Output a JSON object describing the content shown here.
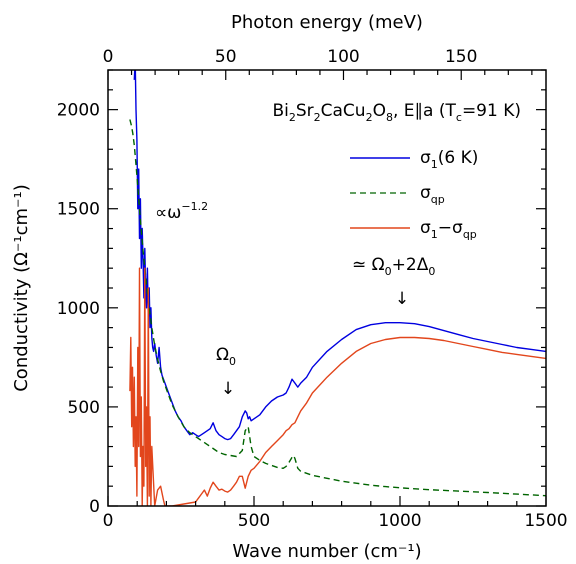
{
  "chart_data": {
    "type": "line",
    "title": "",
    "xlabel": "Wave number (cm⁻¹)",
    "ylabel": "Conductivity (Ω⁻¹cm⁻¹)",
    "x2label": "Photon energy (meV)",
    "xlim": [
      0,
      1500
    ],
    "ylim": [
      0,
      2200
    ],
    "x2lim": [
      0,
      186
    ],
    "x_ticks": [
      0,
      500,
      1000,
      1500
    ],
    "y_ticks": [
      0,
      500,
      1000,
      1500,
      2000
    ],
    "x2_ticks": [
      0,
      50,
      100,
      150
    ],
    "grid": false,
    "legend_position": "top-right",
    "sample_label": {
      "parts": [
        "Bi",
        "2",
        "Sr",
        "2",
        "CaCu",
        "2",
        "O",
        "8",
        ", E",
        "∥",
        "a (T",
        "c",
        "=91 K)"
      ]
    },
    "legend": [
      {
        "main": "σ",
        "sub": "1",
        "tail": "(6 K)",
        "color": "#0000e0",
        "dash": "solid"
      },
      {
        "main": "σ",
        "sub": "qp",
        "tail": "",
        "color": "#006400",
        "dash": "dashed"
      },
      {
        "main": "σ",
        "sub": "1",
        "tail": "−σ",
        "sub2": "qp",
        "color": "#e2461c",
        "dash": "solid"
      }
    ],
    "annotations": {
      "powerlaw": {
        "prefix": "∝ω",
        "sup": "−1.2"
      },
      "omega0": {
        "main": "Ω",
        "sub": "0",
        "arrow": "↓"
      },
      "peak": {
        "prefix": "≃ Ω",
        "sub1": "0",
        "mid": "+2Δ",
        "sub2": "0",
        "arrow": "↓"
      }
    },
    "series": [
      {
        "name": "σ₁(6 K)",
        "color": "#0000e0",
        "dash": "solid",
        "x": [
          90,
          93,
          96,
          99,
          102,
          105,
          108,
          111,
          114,
          117,
          120,
          123,
          126,
          129,
          132,
          135,
          138,
          141,
          144,
          147,
          150,
          153,
          156,
          160,
          165,
          170,
          175,
          180,
          185,
          190,
          200,
          210,
          220,
          230,
          240,
          250,
          260,
          270,
          280,
          290,
          300,
          310,
          320,
          330,
          340,
          350,
          360,
          370,
          380,
          390,
          400,
          410,
          420,
          430,
          440,
          450,
          460,
          470,
          475,
          480,
          485,
          490,
          500,
          520,
          540,
          560,
          580,
          600,
          610,
          620,
          630,
          640,
          650,
          660,
          680,
          700,
          750,
          800,
          850,
          900,
          950,
          1000,
          1050,
          1100,
          1150,
          1200,
          1250,
          1300,
          1350,
          1400,
          1450,
          1500
        ],
        "y": [
          2150,
          2250,
          2000,
          1850,
          1500,
          1700,
          1350,
          1550,
          1200,
          1400,
          1250,
          1050,
          1300,
          1100,
          1000,
          1200,
          950,
          1100,
          900,
          1000,
          850,
          800,
          780,
          820,
          760,
          720,
          800,
          700,
          660,
          640,
          600,
          560,
          520,
          480,
          450,
          430,
          400,
          380,
          360,
          370,
          360,
          350,
          360,
          370,
          380,
          390,
          420,
          380,
          360,
          350,
          340,
          335,
          340,
          360,
          380,
          400,
          450,
          480,
          470,
          440,
          450,
          430,
          440,
          460,
          500,
          530,
          550,
          560,
          570,
          600,
          640,
          620,
          600,
          620,
          650,
          700,
          780,
          840,
          890,
          915,
          925,
          925,
          920,
          905,
          885,
          865,
          845,
          830,
          815,
          800,
          790,
          780
        ]
      },
      {
        "name": "σqp",
        "color": "#006400",
        "dash": "dashed",
        "x": [
          75,
          80,
          85,
          90,
          95,
          100,
          110,
          120,
          130,
          140,
          150,
          160,
          170,
          180,
          190,
          200,
          210,
          220,
          230,
          240,
          250,
          260,
          270,
          280,
          290,
          300,
          310,
          320,
          330,
          340,
          350,
          360,
          370,
          380,
          390,
          400,
          420,
          440,
          460,
          470,
          480,
          490,
          500,
          520,
          540,
          560,
          580,
          600,
          610,
          620,
          630,
          635,
          640,
          650,
          660,
          680,
          700,
          750,
          800,
          850,
          900,
          950,
          1000,
          1100,
          1200,
          1300,
          1400,
          1500
        ],
        "y": [
          1950,
          1920,
          1880,
          1820,
          1740,
          1650,
          1460,
          1290,
          1140,
          1010,
          900,
          810,
          740,
          680,
          630,
          590,
          550,
          510,
          480,
          450,
          425,
          400,
          385,
          370,
          360,
          350,
          340,
          330,
          320,
          310,
          300,
          290,
          280,
          270,
          265,
          260,
          255,
          250,
          280,
          380,
          400,
          300,
          250,
          230,
          215,
          205,
          195,
          190,
          200,
          220,
          245,
          255,
          240,
          190,
          175,
          165,
          155,
          140,
          125,
          115,
          105,
          98,
          92,
          82,
          75,
          68,
          60,
          52
        ]
      },
      {
        "name": "σ1−σqp",
        "color": "#e2461c",
        "dash": "solid",
        "x": [
          75,
          78,
          81,
          84,
          87,
          90,
          93,
          96,
          99,
          102,
          105,
          108,
          111,
          114,
          117,
          120,
          123,
          126,
          129,
          132,
          135,
          138,
          141,
          144,
          147,
          150,
          160,
          170,
          180,
          190,
          195,
          200,
          210,
          220,
          300,
          310,
          320,
          330,
          340,
          350,
          360,
          370,
          380,
          390,
          400,
          410,
          420,
          430,
          440,
          450,
          460,
          470,
          480,
          490,
          500,
          520,
          540,
          560,
          580,
          600,
          610,
          620,
          630,
          640,
          650,
          660,
          680,
          700,
          750,
          800,
          850,
          900,
          950,
          1000,
          1050,
          1100,
          1150,
          1200,
          1250,
          1300,
          1350,
          1400,
          1450,
          1500
        ],
        "y": [
          580,
          850,
          400,
          700,
          300,
          650,
          200,
          450,
          50,
          800,
          300,
          1200,
          250,
          550,
          0,
          300,
          100,
          1200,
          200,
          500,
          0,
          1100,
          50,
          450,
          0,
          300,
          0,
          80,
          100,
          30,
          0,
          0,
          0,
          0,
          20,
          40,
          60,
          80,
          50,
          90,
          120,
          100,
          80,
          85,
          75,
          70,
          80,
          100,
          120,
          150,
          150,
          90,
          150,
          180,
          190,
          225,
          270,
          300,
          330,
          360,
          380,
          390,
          410,
          420,
          450,
          480,
          520,
          570,
          650,
          720,
          780,
          820,
          840,
          850,
          850,
          845,
          835,
          820,
          805,
          790,
          775,
          765,
          755,
          745
        ]
      }
    ]
  }
}
